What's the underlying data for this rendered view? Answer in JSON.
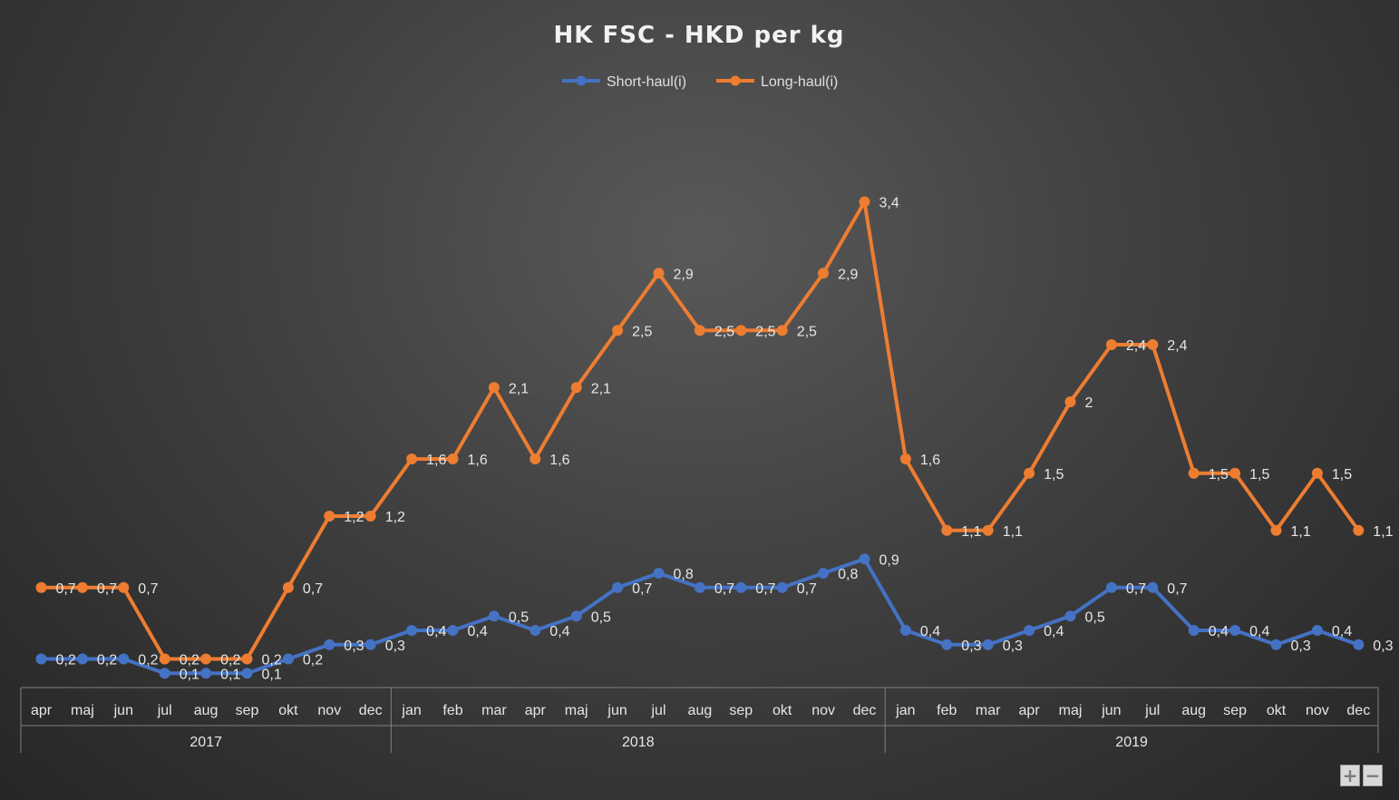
{
  "zoom": {
    "plus_label": "+",
    "minus_label": "−"
  },
  "chart_data": {
    "type": "line",
    "title": "HK FSC - HKD per kg",
    "xlabel": "",
    "ylabel": "",
    "ylim": [
      0,
      3.6
    ],
    "legend_position": "top-center",
    "grid": false,
    "categories": [
      "apr",
      "maj",
      "jun",
      "jul",
      "aug",
      "sep",
      "okt",
      "nov",
      "dec",
      "jan",
      "feb",
      "mar",
      "apr",
      "maj",
      "jun",
      "jul",
      "aug",
      "sep",
      "okt",
      "nov",
      "dec",
      "jan",
      "feb",
      "mar",
      "apr",
      "maj",
      "jun",
      "jul",
      "aug",
      "sep",
      "okt",
      "nov",
      "dec"
    ],
    "year_groups": [
      {
        "label": "2017",
        "count": 9
      },
      {
        "label": "2018",
        "count": 12
      },
      {
        "label": "2019",
        "count": 12
      }
    ],
    "series": [
      {
        "name": "Short-haul(i)",
        "color": "#4472c4",
        "values": [
          0.2,
          0.2,
          0.2,
          0.1,
          0.1,
          0.1,
          0.2,
          0.3,
          0.3,
          0.4,
          0.4,
          0.5,
          0.4,
          0.5,
          0.7,
          0.8,
          0.7,
          0.7,
          0.7,
          0.8,
          0.9,
          0.4,
          0.3,
          0.3,
          0.4,
          0.5,
          0.7,
          0.7,
          0.4,
          0.4,
          0.3,
          0.4,
          0.3
        ],
        "labels": [
          "0,2",
          "0,2",
          "0,2",
          "0,1",
          "0,1",
          "0,1",
          "0,2",
          "0,3",
          "0,3",
          "0,4",
          "0,4",
          "0,5",
          "0,4",
          "0,5",
          "0,7",
          "0,8",
          "0,7",
          "0,7",
          "0,7",
          "0,8",
          "0,9",
          "0,4",
          "0,3",
          "0,3",
          "0,4",
          "0,5",
          "0,7",
          "0,7",
          "0,4",
          "0,4",
          "0,3",
          "0,4",
          "0,3"
        ]
      },
      {
        "name": "Long-haul(i)",
        "color": "#ed7d31",
        "values": [
          0.7,
          0.7,
          0.7,
          0.2,
          0.2,
          0.2,
          0.7,
          1.2,
          1.2,
          1.6,
          1.6,
          2.1,
          1.6,
          2.1,
          2.5,
          2.9,
          2.5,
          2.5,
          2.5,
          2.9,
          3.4,
          1.6,
          1.1,
          1.1,
          1.5,
          2,
          2.4,
          2.4,
          1.5,
          1.5,
          1.1,
          1.5,
          1.1
        ],
        "labels": [
          "0,7",
          "0,7",
          "0,7",
          "0,2",
          "0,2",
          "0,2",
          "0,7",
          "1,2",
          "1,2",
          "1,6",
          "1,6",
          "2,1",
          "1,6",
          "2,1",
          "2,5",
          "2,9",
          "2,5",
          "2,5",
          "2,5",
          "2,9",
          "3,4",
          "1,6",
          "1,1",
          "1,1",
          "1,5",
          "2",
          "2,4",
          "2,4",
          "1,5",
          "1,5",
          "1,1",
          "1,5",
          "1,1"
        ]
      }
    ]
  }
}
